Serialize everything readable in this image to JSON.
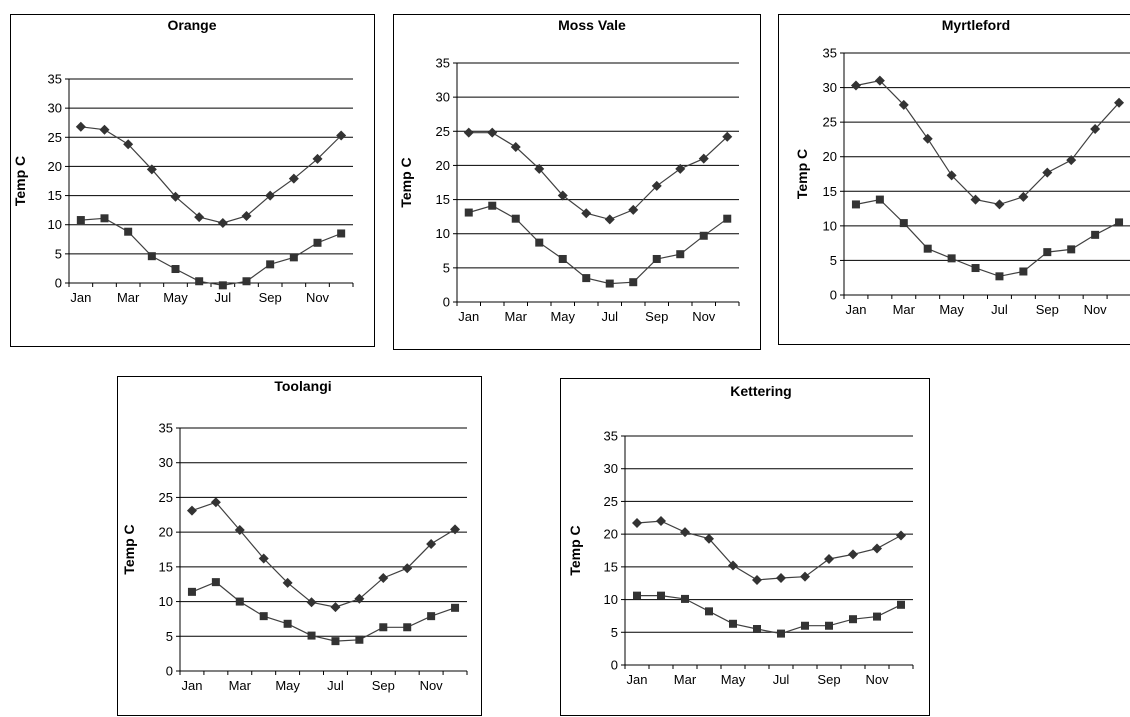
{
  "chart_data": [
    {
      "type": "line",
      "title": "Orange",
      "xlabel": "",
      "ylabel": "Temp C",
      "ylim": [
        0,
        35
      ],
      "y_ticks": [
        0,
        5,
        10,
        15,
        20,
        25,
        30,
        35
      ],
      "categories": [
        "Jan",
        "Feb",
        "Mar",
        "Apr",
        "May",
        "Jun",
        "Jul",
        "Aug",
        "Sep",
        "Oct",
        "Nov",
        "Dec"
      ],
      "x_tick_labels": [
        "Jan",
        "Mar",
        "May",
        "Jul",
        "Sep",
        "Nov"
      ],
      "grid": "horizontal",
      "series": [
        {
          "marker": "diamond",
          "values": [
            26.8,
            26.3,
            23.8,
            19.5,
            14.8,
            11.3,
            10.3,
            11.5,
            15.0,
            17.9,
            21.3,
            25.3
          ]
        },
        {
          "marker": "square",
          "values": [
            10.8,
            11.1,
            8.8,
            4.6,
            2.4,
            0.3,
            -0.4,
            0.3,
            3.2,
            4.4,
            6.9,
            8.5
          ]
        }
      ]
    },
    {
      "type": "line",
      "title": "Moss Vale",
      "xlabel": "",
      "ylabel": "Temp C",
      "ylim": [
        0,
        35
      ],
      "y_ticks": [
        0,
        5,
        10,
        15,
        20,
        25,
        30,
        35
      ],
      "categories": [
        "Jan",
        "Feb",
        "Mar",
        "Apr",
        "May",
        "Jun",
        "Jul",
        "Aug",
        "Sep",
        "Oct",
        "Nov",
        "Dec"
      ],
      "x_tick_labels": [
        "Jan",
        "Mar",
        "May",
        "Jul",
        "Sep",
        "Nov"
      ],
      "grid": "horizontal",
      "series": [
        {
          "marker": "diamond",
          "values": [
            24.8,
            24.8,
            22.7,
            19.5,
            15.6,
            13.0,
            12.1,
            13.5,
            17.0,
            19.5,
            21.0,
            24.2
          ]
        },
        {
          "marker": "square",
          "values": [
            13.1,
            14.1,
            12.2,
            8.7,
            6.3,
            3.5,
            2.7,
            2.9,
            6.3,
            7.0,
            9.7,
            12.2
          ]
        }
      ]
    },
    {
      "type": "line",
      "title": "Myrtleford",
      "xlabel": "",
      "ylabel": "Temp C",
      "ylim": [
        0,
        35
      ],
      "y_ticks": [
        0,
        5,
        10,
        15,
        20,
        25,
        30,
        35
      ],
      "categories": [
        "Jan",
        "Feb",
        "Mar",
        "Apr",
        "May",
        "Jun",
        "Jul",
        "Aug",
        "Sep",
        "Oct",
        "Nov",
        "Dec"
      ],
      "x_tick_labels": [
        "Jan",
        "Mar",
        "May",
        "Jul",
        "Sep",
        "Nov"
      ],
      "grid": "horizontal",
      "series": [
        {
          "marker": "diamond",
          "values": [
            30.3,
            31.0,
            27.5,
            22.6,
            17.3,
            13.8,
            13.1,
            14.2,
            17.7,
            19.5,
            24.0,
            27.8
          ]
        },
        {
          "marker": "square",
          "values": [
            13.1,
            13.8,
            10.4,
            6.7,
            5.3,
            3.9,
            2.7,
            3.4,
            6.2,
            6.6,
            8.7,
            10.5
          ]
        }
      ]
    },
    {
      "type": "line",
      "title": "Toolangi",
      "xlabel": "",
      "ylabel": "Temp C",
      "ylim": [
        0,
        35
      ],
      "y_ticks": [
        0,
        5,
        10,
        15,
        20,
        25,
        30,
        35
      ],
      "categories": [
        "Jan",
        "Feb",
        "Mar",
        "Apr",
        "May",
        "Jun",
        "Jul",
        "Aug",
        "Sep",
        "Oct",
        "Nov",
        "Dec"
      ],
      "x_tick_labels": [
        "Jan",
        "Mar",
        "May",
        "Jul",
        "Sep",
        "Nov"
      ],
      "grid": "horizontal",
      "series": [
        {
          "marker": "diamond",
          "values": [
            23.1,
            24.3,
            20.3,
            16.2,
            12.7,
            9.9,
            9.2,
            10.4,
            13.4,
            14.8,
            18.3,
            20.4
          ]
        },
        {
          "marker": "square",
          "values": [
            11.4,
            12.8,
            10.0,
            7.9,
            6.8,
            5.1,
            4.3,
            4.5,
            6.3,
            6.3,
            7.9,
            9.1
          ]
        }
      ]
    },
    {
      "type": "line",
      "title": "Kettering",
      "xlabel": "",
      "ylabel": "Temp C",
      "ylim": [
        0,
        35
      ],
      "y_ticks": [
        0,
        5,
        10,
        15,
        20,
        25,
        30,
        35
      ],
      "categories": [
        "Jan",
        "Feb",
        "Mar",
        "Apr",
        "May",
        "Jun",
        "Jul",
        "Aug",
        "Sep",
        "Oct",
        "Nov",
        "Dec"
      ],
      "x_tick_labels": [
        "Jan",
        "Mar",
        "May",
        "Jul",
        "Sep",
        "Nov"
      ],
      "grid": "horizontal",
      "series": [
        {
          "marker": "diamond",
          "values": [
            21.7,
            22.0,
            20.3,
            19.3,
            15.2,
            13.0,
            13.3,
            13.5,
            16.2,
            16.9,
            17.8,
            19.8
          ]
        },
        {
          "marker": "square",
          "values": [
            10.6,
            10.6,
            10.1,
            8.2,
            6.3,
            5.5,
            4.8,
            6.0,
            6.0,
            7.0,
            7.4,
            9.2
          ]
        }
      ]
    }
  ],
  "colors": {
    "line": "#404040",
    "marker": "#333333",
    "grid": "#000000",
    "border": "#000000"
  }
}
